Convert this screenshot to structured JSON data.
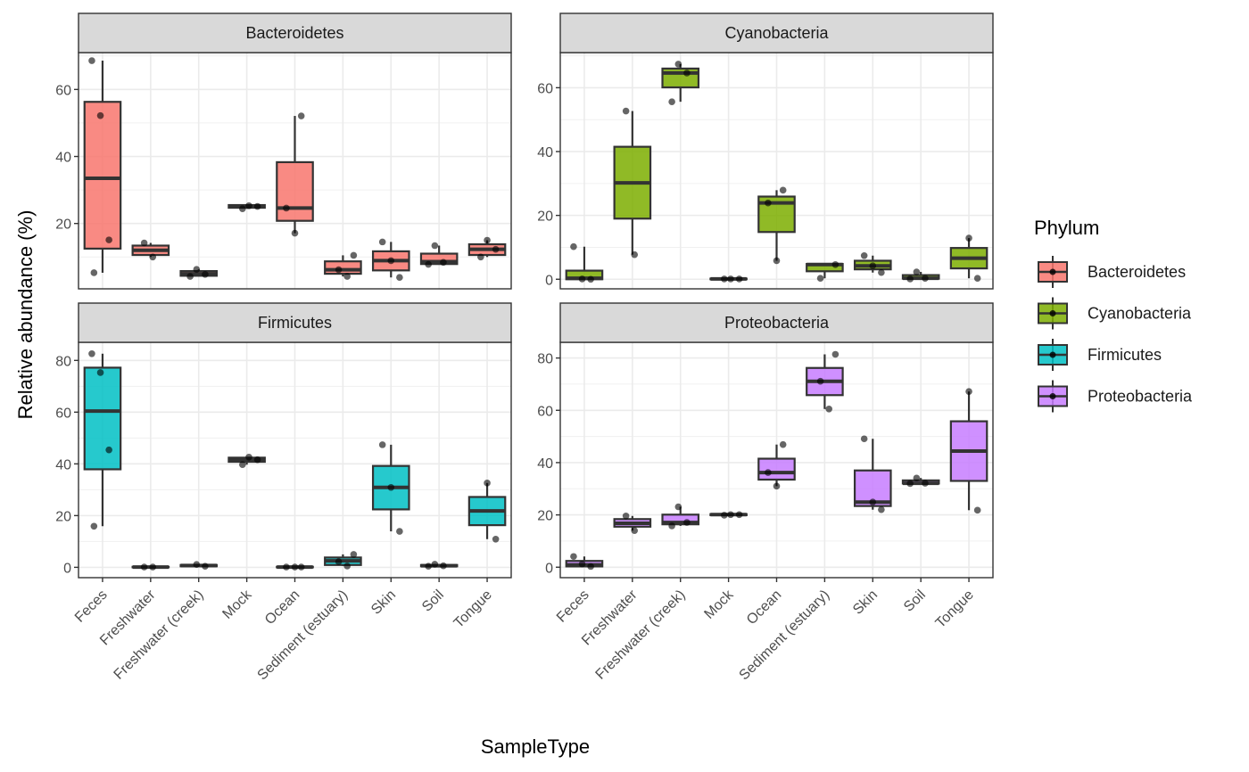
{
  "chart_data": {
    "type": "boxplot",
    "title": "",
    "xlabel": "SampleType",
    "ylabel": "Relative abundance (%)",
    "facet_by": "Phylum",
    "legend": {
      "title": "Phylum",
      "placement": "right",
      "entries": [
        {
          "label": "Bacteroidetes",
          "color": "#F8766D"
        },
        {
          "label": "Cyanobacteria",
          "color": "#7CAE00"
        },
        {
          "label": "Firmicutes",
          "color": "#00BFC4"
        },
        {
          "label": "Proteobacteria",
          "color": "#C77CFF"
        }
      ]
    },
    "categories": [
      "Feces",
      "Freshwater",
      "Freshwater (creek)",
      "Mock",
      "Ocean",
      "Sediment (estuary)",
      "Skin",
      "Soil",
      "Tongue"
    ],
    "grid": true,
    "panels": [
      {
        "name": "Bacteroidetes",
        "color": "#F8766D",
        "ylim": [
          0.5,
          71
        ],
        "yticks": [
          20,
          40,
          60
        ],
        "boxes": [
          {
            "category": "Feces",
            "lower": 5.3,
            "q1": 12.5,
            "median": 33.5,
            "q3": 56.3,
            "upper": 68.6,
            "points": [
              68.6,
              52.2,
              15.1,
              5.3
            ]
          },
          {
            "category": "Freshwater",
            "lower": 10,
            "q1": 10.6,
            "median": 12,
            "q3": 13.4,
            "upper": 14.2,
            "points": [
              14.2,
              10
            ]
          },
          {
            "category": "Freshwater (creek)",
            "lower": 4.2,
            "q1": 4.4,
            "median": 5,
            "q3": 5.8,
            "upper": 6.3,
            "points": [
              6.3,
              4.8,
              4.2
            ]
          },
          {
            "category": "Mock",
            "lower": 24.4,
            "q1": 24.7,
            "median": 25.1,
            "q3": 25.5,
            "upper": 25.5,
            "points": [
              25.3,
              25.1,
              24.4
            ]
          },
          {
            "category": "Ocean",
            "lower": 17.1,
            "q1": 20.8,
            "median": 24.6,
            "q3": 38.3,
            "upper": 52.1,
            "points": [
              52.1,
              24.6,
              17.1
            ]
          },
          {
            "category": "Sediment (estuary)",
            "lower": 4.2,
            "q1": 5.0,
            "median": 6.2,
            "q3": 8.7,
            "upper": 10.5,
            "points": [
              10.5,
              6.2,
              4.2
            ]
          },
          {
            "category": "Skin",
            "lower": 3.9,
            "q1": 6.0,
            "median": 8.9,
            "q3": 11.7,
            "upper": 14.5,
            "points": [
              14.5,
              8.9,
              3.9
            ]
          },
          {
            "category": "Soil",
            "lower": 7.8,
            "q1": 7.9,
            "median": 8.6,
            "q3": 11.0,
            "upper": 13.4,
            "points": [
              13.4,
              8.4,
              7.8
            ]
          },
          {
            "category": "Tongue",
            "lower": 10.0,
            "q1": 10.6,
            "median": 12.3,
            "q3": 13.8,
            "upper": 15.0,
            "points": [
              15.0,
              12.3,
              10.0
            ]
          }
        ]
      },
      {
        "name": "Cyanobacteria",
        "color": "#7CAE00",
        "ylim": [
          -3,
          71
        ],
        "yticks": [
          0,
          20,
          40,
          60
        ],
        "boxes": [
          {
            "category": "Feces",
            "lower": 0,
            "q1": 0,
            "median": 0.3,
            "q3": 2.7,
            "upper": 10.2,
            "points": [
              10.2,
              0.1,
              0
            ]
          },
          {
            "category": "Freshwater",
            "lower": 7.7,
            "q1": 19,
            "median": 30.2,
            "q3": 41.5,
            "upper": 52.7,
            "points": [
              52.7,
              7.7
            ]
          },
          {
            "category": "Freshwater (creek)",
            "lower": 55.6,
            "q1": 60.1,
            "median": 64.6,
            "q3": 66.0,
            "upper": 67.4,
            "points": [
              67.4,
              64.6,
              55.6
            ]
          },
          {
            "category": "Mock",
            "lower": 0,
            "q1": 0,
            "median": 0.1,
            "q3": 0.2,
            "upper": 0.2,
            "points": [
              0.1,
              0.1,
              0.1
            ]
          },
          {
            "category": "Ocean",
            "lower": 5.8,
            "q1": 14.8,
            "median": 23.9,
            "q3": 25.9,
            "upper": 27.9,
            "points": [
              27.9,
              23.9,
              5.8
            ]
          },
          {
            "category": "Sediment (estuary)",
            "lower": 0.3,
            "q1": 2.5,
            "median": 4.6,
            "q3": 4.8,
            "upper": 5.0,
            "points": [
              4.6,
              0.3
            ]
          },
          {
            "category": "Skin",
            "lower": 2.1,
            "q1": 3.1,
            "median": 4.2,
            "q3": 5.8,
            "upper": 7.4,
            "points": [
              7.4,
              4.2,
              2.1
            ]
          },
          {
            "category": "Soil",
            "lower": 0.1,
            "q1": 0.2,
            "median": 0.3,
            "q3": 1.3,
            "upper": 2.3,
            "points": [
              2.3,
              0.3,
              0.1
            ]
          },
          {
            "category": "Tongue",
            "lower": 0.3,
            "q1": 3.4,
            "median": 6.6,
            "q3": 9.8,
            "upper": 12.9,
            "points": [
              12.9,
              0.3
            ]
          }
        ]
      },
      {
        "name": "Firmicutes",
        "color": "#00BFC4",
        "ylim": [
          -4,
          87
        ],
        "yticks": [
          0,
          20,
          40,
          60,
          80
        ],
        "boxes": [
          {
            "category": "Feces",
            "lower": 15.9,
            "q1": 37.9,
            "median": 60.4,
            "q3": 77.2,
            "upper": 82.6,
            "points": [
              82.6,
              75.3,
              45.4,
              15.9
            ]
          },
          {
            "category": "Freshwater",
            "lower": 0,
            "q1": 0,
            "median": 0.1,
            "q3": 0.2,
            "upper": 0.3,
            "points": [
              0.1,
              0.1
            ]
          },
          {
            "category": "Freshwater (creek)",
            "lower": 0.3,
            "q1": 0.4,
            "median": 0.7,
            "q3": 0.9,
            "upper": 1.1,
            "points": [
              1.1,
              0.4
            ]
          },
          {
            "category": "Mock",
            "lower": 39.7,
            "q1": 40.8,
            "median": 41.6,
            "q3": 42.4,
            "upper": 42.6,
            "points": [
              42.6,
              41.6,
              39.7
            ]
          },
          {
            "category": "Ocean",
            "lower": 0,
            "q1": 0,
            "median": 0.1,
            "q3": 0.2,
            "upper": 0.2,
            "points": [
              0.1,
              0.1,
              0.1
            ]
          },
          {
            "category": "Sediment (estuary)",
            "lower": 0.5,
            "q1": 0.9,
            "median": 2.5,
            "q3": 3.8,
            "upper": 5.0,
            "points": [
              5.0,
              2.2,
              0.5
            ]
          },
          {
            "category": "Skin",
            "lower": 13.9,
            "q1": 22.4,
            "median": 30.9,
            "q3": 39.2,
            "upper": 47.4,
            "points": [
              47.4,
              30.9,
              13.9
            ]
          },
          {
            "category": "Soil",
            "lower": 0.3,
            "q1": 0.4,
            "median": 0.6,
            "q3": 0.9,
            "upper": 1.2,
            "points": [
              1.2,
              0.6,
              0.4
            ]
          },
          {
            "category": "Tongue",
            "lower": 10.9,
            "q1": 16.3,
            "median": 21.8,
            "q3": 27.2,
            "upper": 32.6,
            "points": [
              32.6,
              10.9
            ]
          }
        ]
      },
      {
        "name": "Proteobacteria",
        "color": "#C77CFF",
        "ylim": [
          -4,
          86
        ],
        "yticks": [
          0,
          20,
          40,
          60,
          80
        ],
        "boxes": [
          {
            "category": "Feces",
            "lower": 0.3,
            "q1": 0.3,
            "median": 0.9,
            "q3": 2.4,
            "upper": 4.1,
            "points": [
              4.1,
              1.2,
              0.3
            ]
          },
          {
            "category": "Freshwater",
            "lower": 14,
            "q1": 15.5,
            "median": 16.8,
            "q3": 18.4,
            "upper": 19.6,
            "points": [
              19.6,
              14
            ]
          },
          {
            "category": "Freshwater (creek)",
            "lower": 15.8,
            "q1": 16.4,
            "median": 17.1,
            "q3": 20.1,
            "upper": 23.1,
            "points": [
              23.1,
              17.1,
              15.8
            ]
          },
          {
            "category": "Mock",
            "lower": 19.9,
            "q1": 19.9,
            "median": 20.1,
            "q3": 20.3,
            "upper": 20.3,
            "points": [
              20.1,
              20.1,
              19.9
            ]
          },
          {
            "category": "Ocean",
            "lower": 31.0,
            "q1": 33.5,
            "median": 36.2,
            "q3": 41.5,
            "upper": 46.9,
            "points": [
              46.9,
              36.2,
              31.0
            ]
          },
          {
            "category": "Sediment (estuary)",
            "lower": 60.5,
            "q1": 65.8,
            "median": 71.1,
            "q3": 76.2,
            "upper": 81.4,
            "points": [
              81.4,
              71.1,
              60.5
            ]
          },
          {
            "category": "Skin",
            "lower": 22.0,
            "q1": 23.4,
            "median": 24.9,
            "q3": 37.0,
            "upper": 49.1,
            "points": [
              49.1,
              24.9,
              22.0
            ]
          },
          {
            "category": "Soil",
            "lower": 32.0,
            "q1": 32.0,
            "median": 32.1,
            "q3": 33.2,
            "upper": 34.1,
            "points": [
              34.1,
              32.1,
              32.0
            ]
          },
          {
            "category": "Tongue",
            "lower": 21.8,
            "q1": 33.0,
            "median": 44.4,
            "q3": 55.8,
            "upper": 67.2,
            "points": [
              67.2,
              21.8
            ]
          }
        ]
      }
    ]
  }
}
